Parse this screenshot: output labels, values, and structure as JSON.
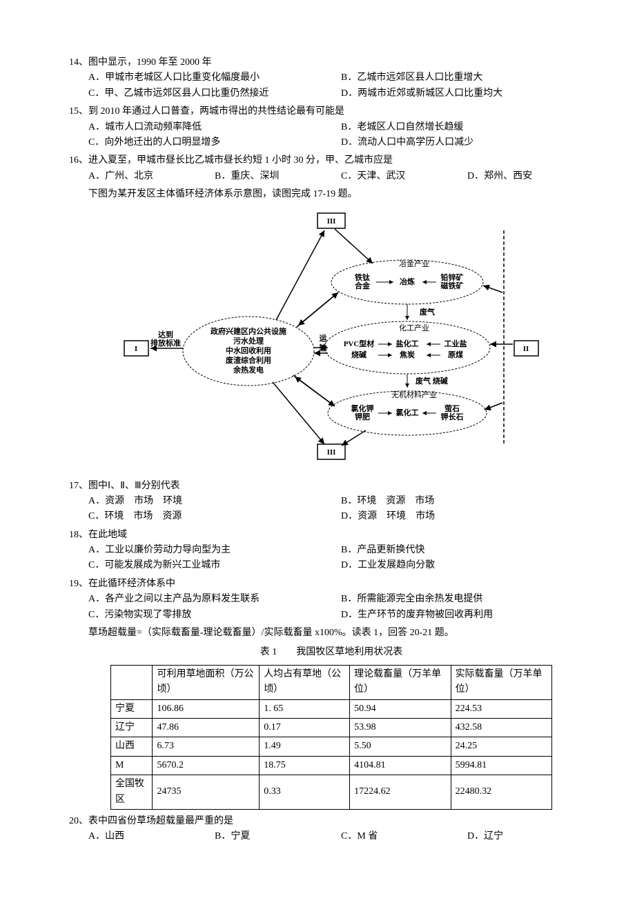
{
  "q14": {
    "stem": "14、图中显示，1990 年至 2000 年",
    "A": "A．甲城市老城区人口比重变化幅度最小",
    "B": "B．乙城市远郊区县人口比重增大",
    "C": "C．甲、乙城市远郊区县人口比重仍然接近",
    "D": "D．两城市近郊或新城区人口比重均大"
  },
  "q15": {
    "stem": "15、到 2010 年通过人口普查，两城市得出的共性结论最有可能是",
    "A": "A．城市人口流动频率降低",
    "B": "B．老城区人口自然增长趋缓",
    "C": "C．向外地迁出的人口明显增多",
    "D": "D．流动人口中高学历人口减少"
  },
  "q16": {
    "stem": "16、进入夏至，甲城市昼长比乙城市昼长约短 1 小时 30 分，甲、乙城市应是",
    "A": "A．广州、北京",
    "B": "B．重庆、深圳",
    "C": "C．天津、武汉",
    "D": "D．郑州、西安"
  },
  "intro1": "下图为某开发区主体循环经济体系示意图，读图完成 17-19 题。",
  "diagram": {
    "box_top": "III",
    "box_left": "I",
    "box_right": "II",
    "box_bottom": "III",
    "arrow_left_label": "达到\n排放标准",
    "center_block": {
      "title": "政府兴建区内公共设施",
      "lines": [
        "污水处理",
        "中水回收利用",
        "废渣综合利用",
        "余热发电"
      ]
    },
    "mid_label": "运\n输",
    "industry1": {
      "title": "冶金产业",
      "left_pair": "铁钛\n合金",
      "mid": "冶炼",
      "right_pair": "铅锌矿\n磁铁矿"
    },
    "gas_label": "废气",
    "industry2": {
      "title": "化工产业",
      "l1a": "PVC型材",
      "l1b": "盐化工",
      "l1c": "工业盐",
      "l2a": "烧碱",
      "l2b": "焦炭",
      "l2c": "原煤"
    },
    "gas2_label": "废气 烧碱",
    "industry3": {
      "title": "无机材料产业",
      "left_pair": "氯化钾\n钾肥",
      "mid": "氯化工",
      "right_pair": "萤石\n钾长石"
    },
    "colors": {
      "stroke": "#000000",
      "bg": "#ffffff"
    },
    "font_size": 11
  },
  "q17": {
    "stem": "17、图中Ⅰ、Ⅱ、Ⅲ分别代表",
    "A": "A．资源　市场　环境",
    "B": "B．环境　资源　市场",
    "C": "C．环境　市场　资源",
    "D": "D．资源　环境　市场"
  },
  "q18": {
    "stem": "18、在此地域",
    "A": "A．工业以廉价劳动力导向型为主",
    "B": "B．产品更新换代快",
    "C": "C．可能发展成为新兴工业城市",
    "D": "D．工业发展趋向分散"
  },
  "q19": {
    "stem": "19、在此循环经济体系中",
    "A": "A．各产业之间以主产品为原料发生联系",
    "B": "B．所需能源完全由余热发电提供",
    "C": "C．污染物实现了零排放",
    "D": "D．生产环节的废弃物被回收再利用"
  },
  "formula": "草场超载量=（实际载畜量-理论载畜量）/实际载畜量 x100%。读表 1，回答 20-21 题。",
  "table": {
    "title": "表 1　　我国牧区草地利用状况表",
    "columns": [
      "",
      "可利用草地面积（万公顷）",
      "人均占有草地（公顷）",
      "理论载畜量（万羊单位）",
      "实际载畜量（万羊单位）"
    ],
    "rows": [
      [
        "宁夏",
        "106.86",
        "1. 65",
        "50.94",
        "224.53"
      ],
      [
        "辽宁",
        "47.86",
        "0.17",
        "53.98",
        "432.58"
      ],
      [
        "山西",
        "6.73",
        "1.49",
        "5.50",
        "24.25"
      ],
      [
        "M",
        "5670.2",
        "18.75",
        "4104.81",
        "5994.81"
      ],
      [
        "全国牧区",
        "24735",
        "0.33",
        "17224.62",
        "22480.32"
      ]
    ]
  },
  "q20": {
    "stem": "20、表中四省份草场超载量最严重的是",
    "A": "A．山西",
    "B": "B．宁夏",
    "C": "C．M 省",
    "D": "D．辽宁"
  }
}
